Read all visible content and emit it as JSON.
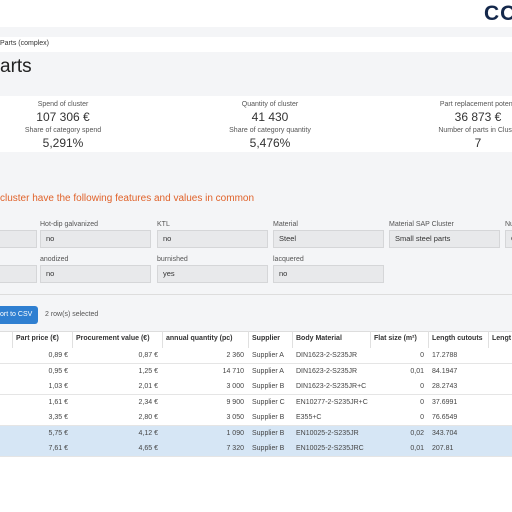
{
  "header": {
    "logo": "CO",
    "breadcrumb": "Parts (complex)",
    "title": "arts"
  },
  "stats": [
    {
      "label": "Spend of cluster",
      "value": "107 306 €"
    },
    {
      "label": "Quantity of cluster",
      "value": "41 430"
    },
    {
      "label": "Part replacement potenti",
      "value": "36 873 €"
    },
    {
      "label": "Share of category spend",
      "value": "5,291%"
    },
    {
      "label": "Share of category quantity",
      "value": "5,476%"
    },
    {
      "label": "Number of parts in Cluste",
      "value": "7"
    }
  ],
  "features": {
    "heading": "cluster have the following features and values in common",
    "rows": [
      [
        {
          "label": "Hot-dip galvanized",
          "value": "no"
        },
        {
          "label": "KTL",
          "value": "no"
        },
        {
          "label": "Material",
          "value": "Steel"
        },
        {
          "label": "Material SAP Cluster",
          "value": "Small steel parts"
        },
        {
          "label": "Nu",
          "value": "C"
        }
      ],
      [
        {
          "label": "anodized",
          "value": "no"
        },
        {
          "label": "burnished",
          "value": "yes"
        },
        {
          "label": "lacquered",
          "value": "no"
        }
      ]
    ]
  },
  "toolbar": {
    "export": "ort to CSV",
    "selection": "2 row(s) selected"
  },
  "table": {
    "columns": [
      "Part price (€)",
      "Procurement value (€)",
      "annual quantity (pc)",
      "Supplier",
      "Body Material",
      "Flat size (m²)",
      "Length cutouts",
      "Lengt"
    ],
    "rows": [
      [
        "0,89 €",
        "0,87 €",
        "2 360",
        "Supplier A",
        "DIN1623-2-S235JR",
        "0",
        "17.2788"
      ],
      [
        "0,95 €",
        "1,25 €",
        "14 710",
        "Supplier A",
        "DIN1623-2-S235JR",
        "0,01",
        "84.1947"
      ],
      [
        "1,03 €",
        "2,01 €",
        "3 000",
        "Supplier B",
        "DIN1623-2-S235JR+C",
        "0",
        "28.2743"
      ],
      [
        "1,61 €",
        "2,34 €",
        "9 900",
        "Supplier C",
        "EN10277-2-S235JR+C",
        "0",
        "37.6991"
      ],
      [
        "3,35 €",
        "2,80 €",
        "3 050",
        "Supplier B",
        "E355+C",
        "0",
        "76.6549"
      ],
      [
        "5,75 €",
        "4,12 €",
        "1 090",
        "Supplier B",
        "EN10025-2-S235JR",
        "0,02",
        "343.704"
      ],
      [
        "7,61 €",
        "4,65 €",
        "7 320",
        "Supplier B",
        "EN10025-2-S235JRC",
        "0,01",
        "207.81"
      ]
    ],
    "selected": [
      5,
      6
    ]
  }
}
